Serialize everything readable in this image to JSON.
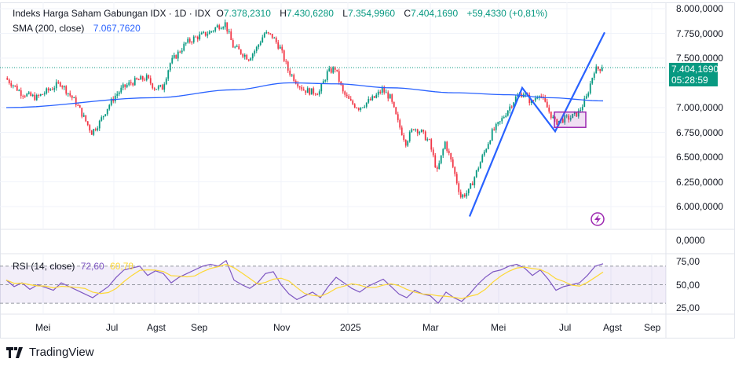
{
  "header": {
    "symbol": "Indeks Harga Saham Gabungan IDX · 1D · IDX",
    "open_label": "O",
    "open": "7.378,2310",
    "high_label": "H",
    "high": "7.430,6280",
    "low_label": "L",
    "low": "7.354,9960",
    "close_label": "C",
    "close": "7.404,1690",
    "change": "+59,4330 (+0,81%)",
    "sma_label": "SMA (200, close)",
    "sma_value": "7.067,7620"
  },
  "price_tag": {
    "price": "7.404,1690",
    "countdown": "05:28:59"
  },
  "rsi_legend": {
    "label": "RSI (14, close)",
    "rsi": "72,60",
    "ma": "60,78"
  },
  "price_axis": [
    "8.000,0000",
    "7.750,0000",
    "7.500,0000",
    "7.000,0000",
    "6.750,0000",
    "6.500,0000",
    "6.250,0000",
    "6.000,0000"
  ],
  "aux_axis": [
    "0,0000"
  ],
  "rsi_axis": [
    "75,00",
    "50,00",
    "25,00"
  ],
  "time_axis": [
    {
      "label": "Mei",
      "i": 4.7
    },
    {
      "label": "Jul",
      "i": 13.7
    },
    {
      "label": "Agst",
      "i": 18.9
    },
    {
      "label": "Sep",
      "i": 24.5
    },
    {
      "label": "Nov",
      "i": 35
    },
    {
      "label": "2025",
      "i": 43.5
    },
    {
      "label": "Mar",
      "i": 54
    },
    {
      "label": "Mei",
      "i": 62.7
    },
    {
      "label": "Jul",
      "i": 71.4
    },
    {
      "label": "Agst",
      "i": 77
    },
    {
      "label": "Sep",
      "i": 82.2
    }
  ],
  "brand": "TradingView",
  "colors": {
    "up": "#089981",
    "down": "#F23645",
    "sma": "#2962FF",
    "rsi": "#7E57C2",
    "rsi_ma": "#FDD835",
    "drawing": "#2962FF",
    "box": "#9C27B0"
  },
  "chart_data": {
    "type": "line",
    "title": "Indeks Harga Saham Gabungan IDX · 1D",
    "ylim": [
      5750,
      8050
    ],
    "closes": [
      7300,
      7230,
      7150,
      7120,
      7100,
      7150,
      7200,
      7250,
      7150,
      7050,
      6900,
      6750,
      6850,
      7000,
      7120,
      7200,
      7250,
      7280,
      7300,
      7200,
      7200,
      7450,
      7550,
      7650,
      7700,
      7730,
      7760,
      7820,
      7850,
      7620,
      7560,
      7500,
      7600,
      7750,
      7720,
      7600,
      7380,
      7270,
      7180,
      7160,
      7160,
      7350,
      7400,
      7150,
      7050,
      7000,
      7050,
      7100,
      7180,
      7100,
      6850,
      6650,
      6800,
      6750,
      6650,
      6350,
      6650,
      6400,
      6100,
      6150,
      6350,
      6550,
      6750,
      6850,
      6980,
      7100,
      7150,
      7050,
      7150,
      7000,
      6850,
      6880,
      6900,
      6950,
      7100,
      7380,
      7404
    ],
    "sma200": [
      {
        "i": 0,
        "v": 7000
      },
      {
        "i": 19,
        "v": 7100
      },
      {
        "i": 29,
        "v": 7180
      },
      {
        "i": 36,
        "v": 7250
      },
      {
        "i": 42,
        "v": 7240
      },
      {
        "i": 49,
        "v": 7200
      },
      {
        "i": 57,
        "v": 7150
      },
      {
        "i": 64,
        "v": 7130
      },
      {
        "i": 69,
        "v": 7100
      },
      {
        "i": 76,
        "v": 7068
      }
    ],
    "rsi": [
      55,
      48,
      52,
      45,
      50,
      47,
      44,
      52,
      48,
      44,
      40,
      36,
      42,
      48,
      58,
      66,
      68,
      70,
      60,
      65,
      62,
      52,
      58,
      62,
      66,
      70,
      72,
      70,
      76,
      55,
      50,
      46,
      52,
      62,
      64,
      50,
      40,
      34,
      38,
      42,
      36,
      48,
      58,
      52,
      46,
      42,
      48,
      52,
      56,
      48,
      40,
      36,
      44,
      40,
      38,
      30,
      42,
      36,
      32,
      40,
      50,
      58,
      64,
      66,
      70,
      72,
      68,
      60,
      66,
      56,
      44,
      48,
      50,
      52,
      60,
      70,
      72.6
    ],
    "drawing_points": [
      {
        "i": 59,
        "v": 5900
      },
      {
        "i": 65.7,
        "v": 7200
      },
      {
        "i": 69.9,
        "v": 6760
      },
      {
        "i": 76.2,
        "v": 7760
      }
    ],
    "box": {
      "i0": 69.8,
      "i1": 73.8,
      "v0": 6800,
      "v1": 6955
    }
  }
}
